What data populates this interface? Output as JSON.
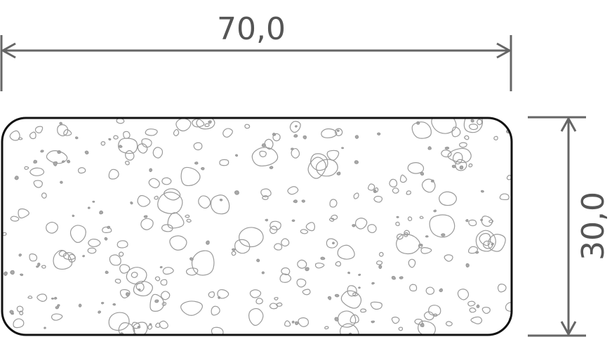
{
  "dimensions": {
    "width_label": "70,0",
    "height_label": "30,0"
  },
  "colors": {
    "dimension_line": "#666666",
    "outline": "#111111",
    "aggregate": "#9a9a9a"
  },
  "fill_pattern": "aggregate-pebbles"
}
